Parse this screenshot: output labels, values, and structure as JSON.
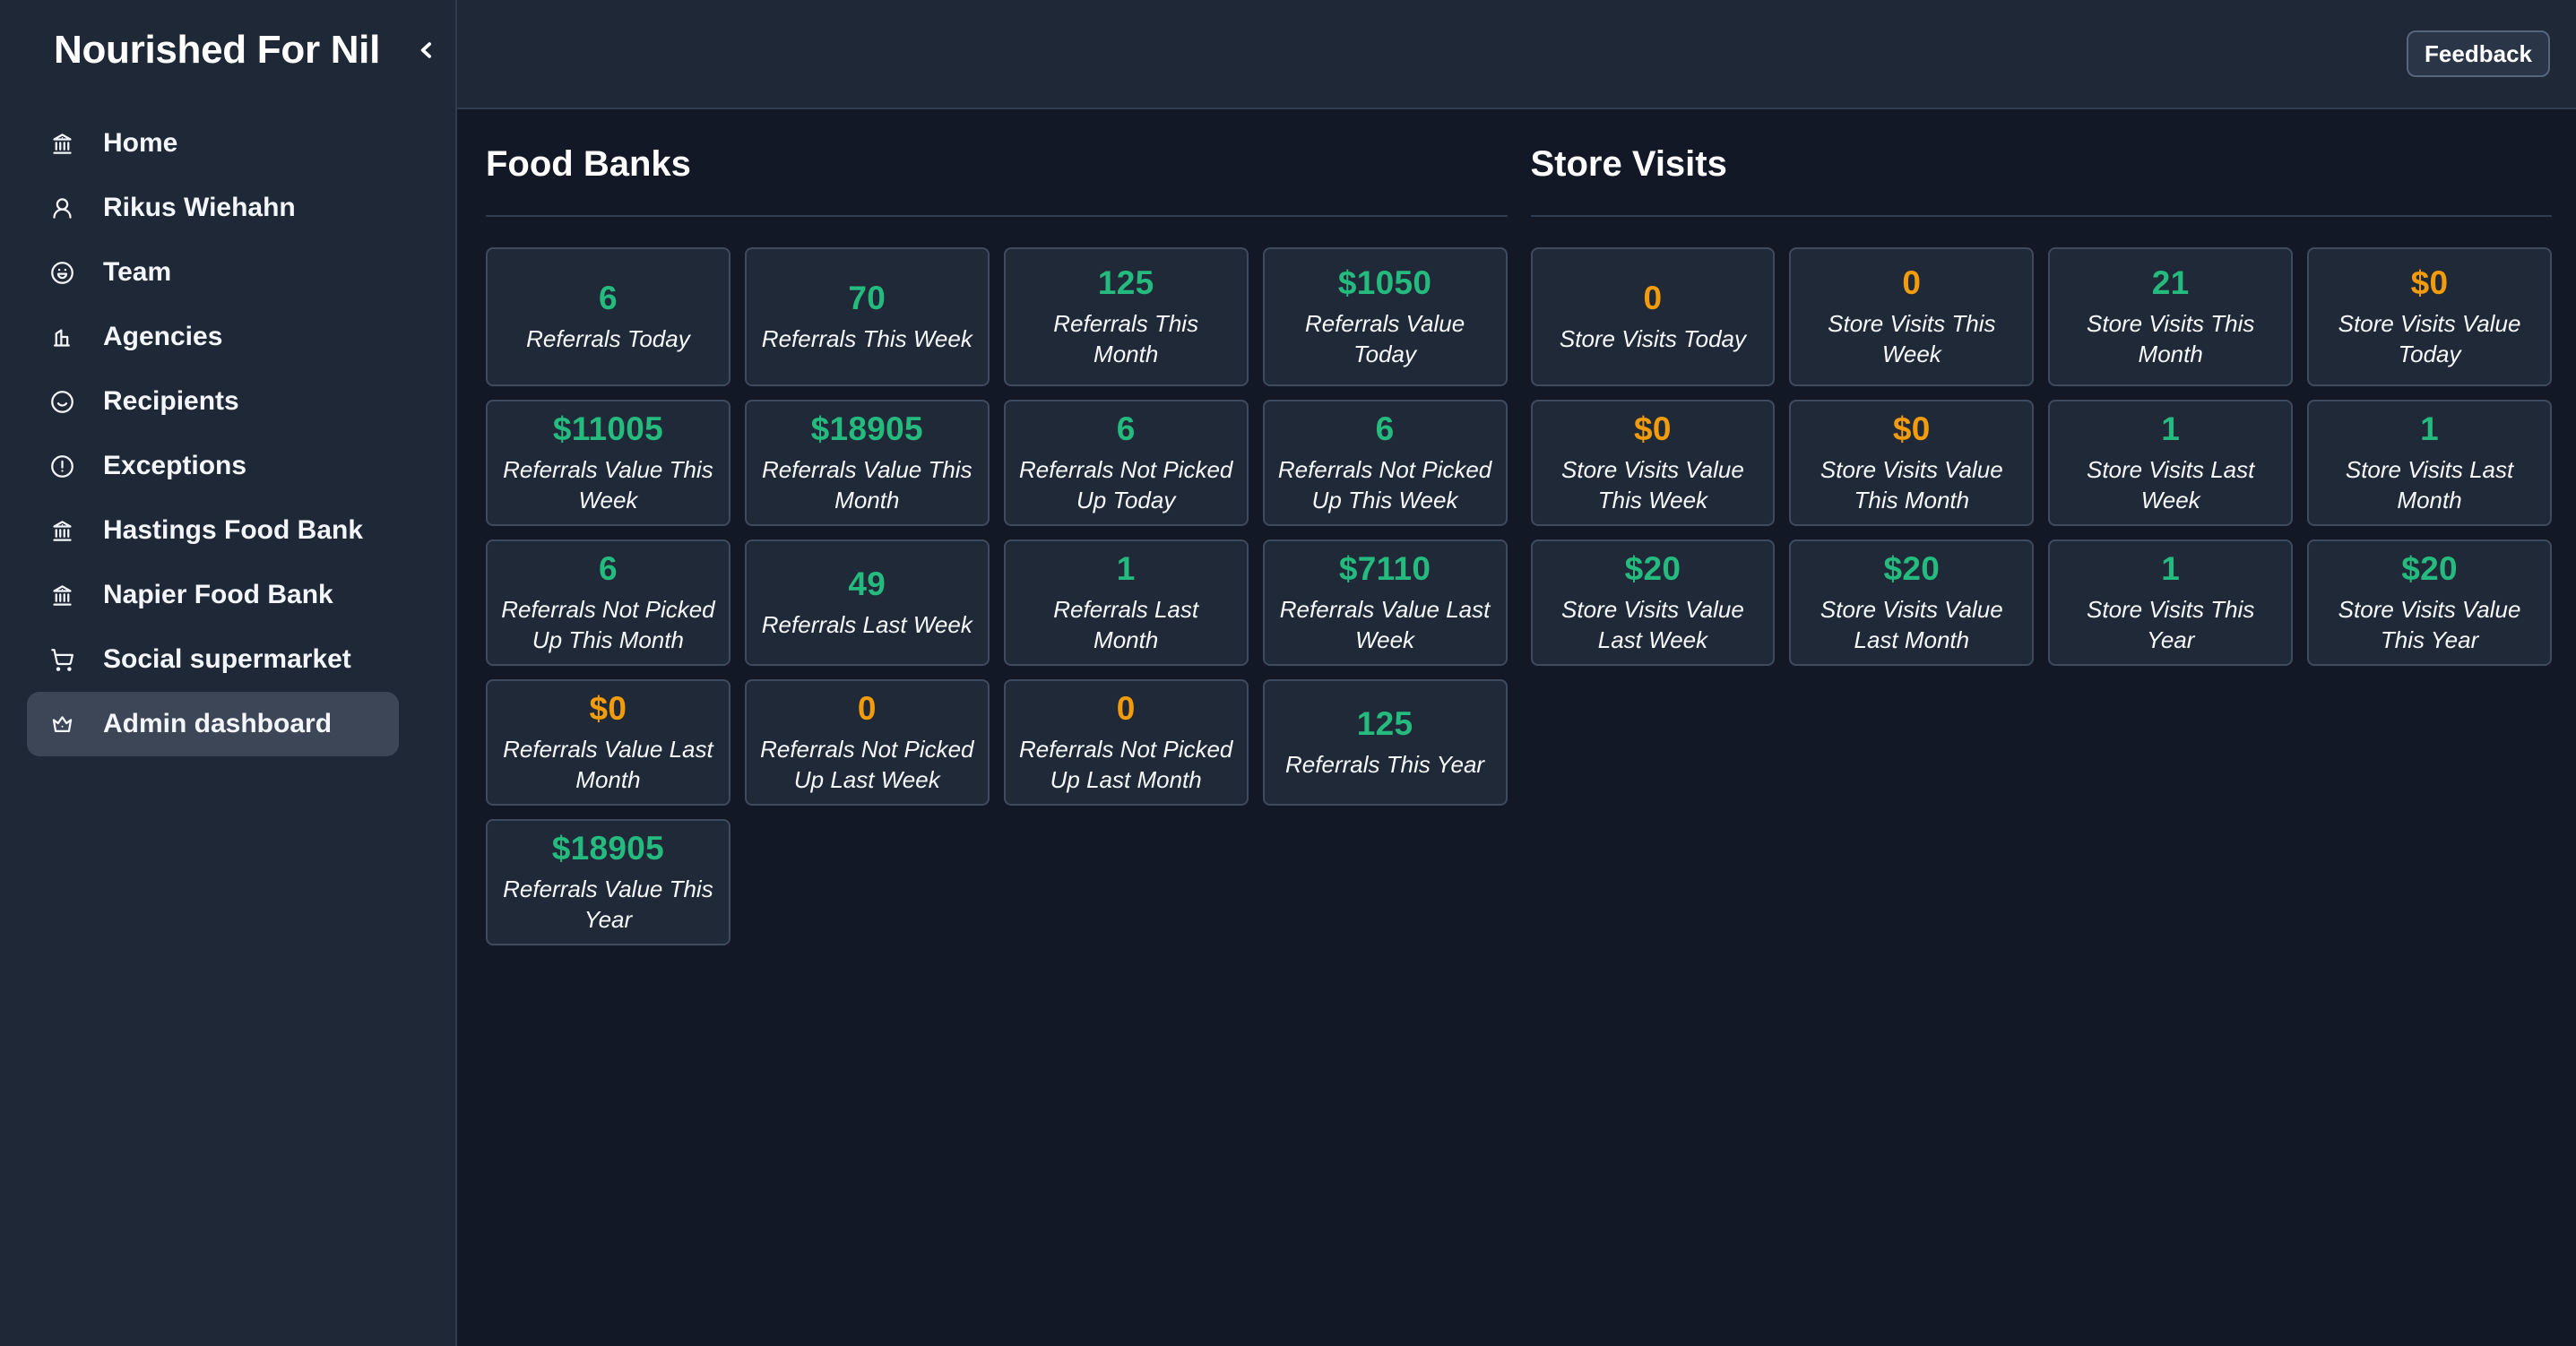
{
  "app": {
    "title": "Nourished For Nil"
  },
  "topbar": {
    "feedback_label": "Feedback"
  },
  "sidebar": {
    "items": [
      {
        "label": "Home",
        "icon": "landmark-icon",
        "active": false
      },
      {
        "label": "Rikus Wiehahn",
        "icon": "user-icon",
        "active": false
      },
      {
        "label": "Team",
        "icon": "laugh-icon",
        "active": false
      },
      {
        "label": "Agencies",
        "icon": "building-icon",
        "active": false
      },
      {
        "label": "Recipients",
        "icon": "smile-icon",
        "active": false
      },
      {
        "label": "Exceptions",
        "icon": "alert-circle-icon",
        "active": false
      },
      {
        "label": "Hastings Food Bank",
        "icon": "landmark-icon",
        "active": false
      },
      {
        "label": "Napier Food Bank",
        "icon": "landmark-icon",
        "active": false
      },
      {
        "label": "Social supermarket",
        "icon": "shopping-cart-icon",
        "active": false
      },
      {
        "label": "Admin dashboard",
        "icon": "crown-icon",
        "active": true
      }
    ]
  },
  "colors": {
    "positive": "#25bb7e",
    "zero": "#f39c0b"
  },
  "sections": [
    {
      "title": "Food Banks",
      "cards": [
        {
          "value": "6",
          "label": "Referrals Today",
          "tone": "positive"
        },
        {
          "value": "70",
          "label": "Referrals This Week",
          "tone": "positive"
        },
        {
          "value": "125",
          "label": "Referrals This Month",
          "tone": "positive"
        },
        {
          "value": "$1050",
          "label": "Referrals Value Today",
          "tone": "positive"
        },
        {
          "value": "$11005",
          "label": "Referrals Value This Week",
          "tone": "positive"
        },
        {
          "value": "$18905",
          "label": "Referrals Value This Month",
          "tone": "positive"
        },
        {
          "value": "6",
          "label": "Referrals Not Picked Up Today",
          "tone": "positive"
        },
        {
          "value": "6",
          "label": "Referrals Not Picked Up This Week",
          "tone": "positive"
        },
        {
          "value": "6",
          "label": "Referrals Not Picked Up This Month",
          "tone": "positive"
        },
        {
          "value": "49",
          "label": "Referrals Last Week",
          "tone": "positive"
        },
        {
          "value": "1",
          "label": "Referrals Last Month",
          "tone": "positive"
        },
        {
          "value": "$7110",
          "label": "Referrals Value Last Week",
          "tone": "positive"
        },
        {
          "value": "$0",
          "label": "Referrals Value Last Month",
          "tone": "zero"
        },
        {
          "value": "0",
          "label": "Referrals Not Picked Up Last Week",
          "tone": "zero"
        },
        {
          "value": "0",
          "label": "Referrals Not Picked Up Last Month",
          "tone": "zero"
        },
        {
          "value": "125",
          "label": "Referrals This Year",
          "tone": "positive"
        },
        {
          "value": "$18905",
          "label": "Referrals Value This Year",
          "tone": "positive"
        }
      ]
    },
    {
      "title": "Store Visits",
      "cards": [
        {
          "value": "0",
          "label": "Store Visits Today",
          "tone": "zero"
        },
        {
          "value": "0",
          "label": "Store Visits This Week",
          "tone": "zero"
        },
        {
          "value": "21",
          "label": "Store Visits This Month",
          "tone": "positive"
        },
        {
          "value": "$0",
          "label": "Store Visits Value Today",
          "tone": "zero"
        },
        {
          "value": "$0",
          "label": "Store Visits Value This Week",
          "tone": "zero"
        },
        {
          "value": "$0",
          "label": "Store Visits Value This Month",
          "tone": "zero"
        },
        {
          "value": "1",
          "label": "Store Visits Last Week",
          "tone": "positive"
        },
        {
          "value": "1",
          "label": "Store Visits Last Month",
          "tone": "positive"
        },
        {
          "value": "$20",
          "label": "Store Visits Value Last Week",
          "tone": "positive"
        },
        {
          "value": "$20",
          "label": "Store Visits Value Last Month",
          "tone": "positive"
        },
        {
          "value": "1",
          "label": "Store Visits This Year",
          "tone": "positive"
        },
        {
          "value": "$20",
          "label": "Store Visits Value This Year",
          "tone": "positive"
        }
      ]
    }
  ]
}
